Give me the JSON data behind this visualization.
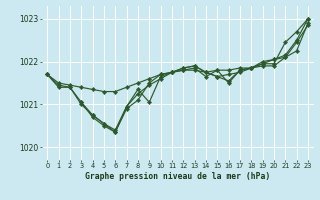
{
  "title": "Graphe pression niveau de la mer (hPa)",
  "bg_color": "#cce8f0",
  "grid_color": "#ffffff",
  "line_color": "#2d5a2d",
  "xlim": [
    -0.5,
    23.5
  ],
  "ylim": [
    1019.7,
    1023.3
  ],
  "yticks": [
    1020,
    1021,
    1022,
    1023
  ],
  "xticks": [
    0,
    1,
    2,
    3,
    4,
    5,
    6,
    7,
    8,
    9,
    10,
    11,
    12,
    13,
    14,
    15,
    16,
    17,
    18,
    19,
    20,
    21,
    22,
    23
  ],
  "series": [
    {
      "x": [
        0,
        1,
        2,
        3,
        4,
        5,
        6,
        7,
        8,
        9,
        10,
        11,
        12,
        13,
        14,
        15,
        16,
        17,
        18,
        19,
        20,
        21,
        22,
        23
      ],
      "y": [
        1021.7,
        1021.5,
        1021.45,
        1021.4,
        1021.35,
        1021.3,
        1021.3,
        1021.4,
        1021.5,
        1021.6,
        1021.7,
        1021.75,
        1021.8,
        1021.8,
        1021.75,
        1021.8,
        1021.8,
        1021.85,
        1021.85,
        1021.9,
        1021.9,
        1022.1,
        1022.45,
        1022.85
      ]
    },
    {
      "x": [
        0,
        1,
        2,
        3,
        4,
        5,
        6,
        7,
        8,
        9,
        10,
        11,
        12,
        13,
        14,
        15,
        16,
        17,
        18,
        19,
        20,
        21,
        22,
        23
      ],
      "y": [
        1021.7,
        1021.45,
        1021.4,
        1021.05,
        1020.75,
        1020.55,
        1020.35,
        1020.9,
        1021.1,
        1021.5,
        1021.7,
        1021.75,
        1021.8,
        1021.85,
        1021.65,
        1021.8,
        1021.5,
        1021.8,
        1021.85,
        1022.0,
        1022.05,
        1022.15,
        1022.5,
        1023.0
      ]
    },
    {
      "x": [
        3,
        4,
        5,
        6,
        7,
        8,
        9,
        10,
        11,
        12,
        13,
        14,
        15,
        16,
        17,
        18,
        19,
        20,
        21,
        22,
        23
      ],
      "y": [
        1021.05,
        1020.7,
        1020.5,
        1020.35,
        1020.95,
        1021.35,
        1021.05,
        1021.65,
        1021.75,
        1021.85,
        1021.9,
        1021.75,
        1021.65,
        1021.55,
        1021.8,
        1021.85,
        1021.95,
        1022.05,
        1022.1,
        1022.25,
        1022.9
      ]
    },
    {
      "x": [
        0,
        1,
        2,
        3,
        4,
        5,
        6,
        7,
        8,
        9,
        10,
        11,
        12,
        13,
        14,
        15,
        16,
        17,
        18,
        19,
        20,
        21,
        22,
        23
      ],
      "y": [
        1021.7,
        1021.4,
        1021.4,
        1021.0,
        1020.75,
        1020.55,
        1020.4,
        1020.95,
        1021.25,
        1021.45,
        1021.6,
        1021.75,
        1021.85,
        1021.9,
        1021.75,
        1021.65,
        1021.7,
        1021.75,
        1021.85,
        1021.95,
        1021.95,
        1022.45,
        1022.7,
        1023.0
      ]
    }
  ]
}
